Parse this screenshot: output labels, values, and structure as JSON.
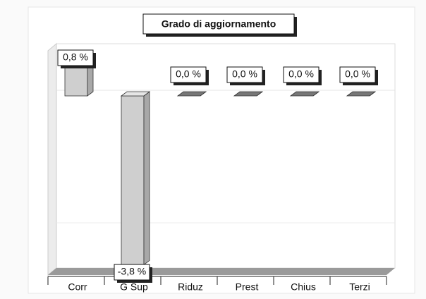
{
  "chart_data": {
    "type": "bar3d",
    "title": "Grado di aggiornamento",
    "categories": [
      "Corr",
      "G Sup",
      "Riduz",
      "Prest",
      "Chius",
      "Terzi"
    ],
    "values": [
      0.8,
      -3.8,
      0,
      0,
      0,
      0
    ],
    "value_labels": [
      "0,8 %",
      "-3,8 %",
      "0,0 %",
      "0,0 %",
      "0,0 %",
      "0,0 %"
    ],
    "color": "#cfcfcf"
  }
}
